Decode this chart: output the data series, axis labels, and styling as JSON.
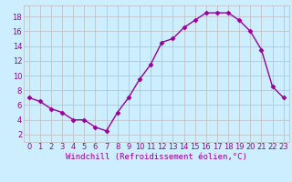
{
  "x": [
    0,
    1,
    2,
    3,
    4,
    5,
    6,
    7,
    8,
    9,
    10,
    11,
    12,
    13,
    14,
    15,
    16,
    17,
    18,
    19,
    20,
    21,
    22,
    23
  ],
  "y": [
    7.0,
    6.5,
    5.5,
    5.0,
    4.0,
    4.0,
    3.0,
    2.5,
    5.0,
    7.0,
    9.5,
    11.5,
    14.5,
    15.0,
    16.5,
    17.5,
    18.5,
    18.5,
    18.5,
    17.5,
    16.0,
    13.5,
    8.5,
    7.0
  ],
  "line_color": "#990099",
  "marker": "D",
  "markersize": 2.5,
  "linewidth": 1.0,
  "bg_color": "#cceeff",
  "grid_color": "#bbbbbb",
  "xlabel": "Windchill (Refroidissement éolien,°C)",
  "xlabel_fontsize": 6.5,
  "tick_fontsize": 6,
  "yticks": [
    2,
    4,
    6,
    8,
    10,
    12,
    14,
    16,
    18
  ],
  "xticks": [
    0,
    1,
    2,
    3,
    4,
    5,
    6,
    7,
    8,
    9,
    10,
    11,
    12,
    13,
    14,
    15,
    16,
    17,
    18,
    19,
    20,
    21,
    22,
    23
  ],
  "ylim": [
    1.0,
    19.5
  ],
  "xlim": [
    -0.5,
    23.5
  ]
}
